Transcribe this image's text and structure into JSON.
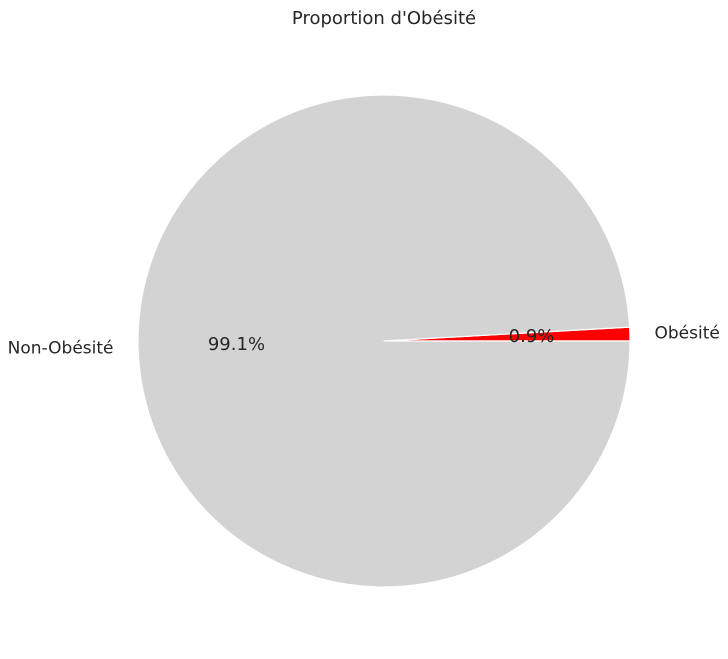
{
  "chart_data": {
    "type": "pie",
    "title": "Proportion d'Obésité",
    "slices": [
      {
        "label": "Obésité",
        "value": 0.9,
        "pct_label": "0.9%",
        "color": "#ff0000"
      },
      {
        "label": "Non-Obésité",
        "value": 99.1,
        "pct_label": "99.1%",
        "color": "#d3d3d3"
      }
    ],
    "start_angle_deg": 0,
    "direction": "counterclockwise",
    "slice_edge_color": "#ffffff"
  }
}
